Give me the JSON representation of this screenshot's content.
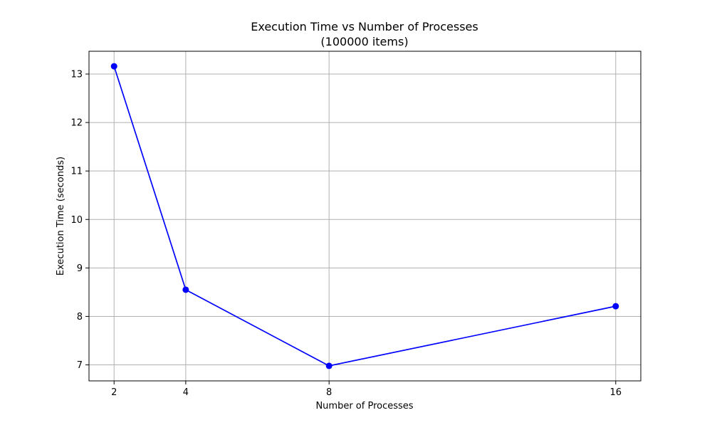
{
  "chart_data": {
    "type": "line",
    "title": "Execution Time vs Number of Processes",
    "subtitle": "(100000 items)",
    "xlabel": "Number of Processes",
    "ylabel": "Execution Time (seconds)",
    "x": [
      2,
      4,
      8,
      16
    ],
    "series": [
      {
        "values": [
          13.16,
          8.55,
          6.98,
          8.21
        ]
      }
    ],
    "xticks": [
      2,
      4,
      8,
      16
    ],
    "yticks": [
      7,
      8,
      9,
      10,
      11,
      12,
      13
    ],
    "xlim": [
      1.3,
      16.7
    ],
    "ylim": [
      6.67,
      13.47
    ],
    "grid": true,
    "line_color": "#0000ff",
    "marker_color": "#0000ff"
  }
}
